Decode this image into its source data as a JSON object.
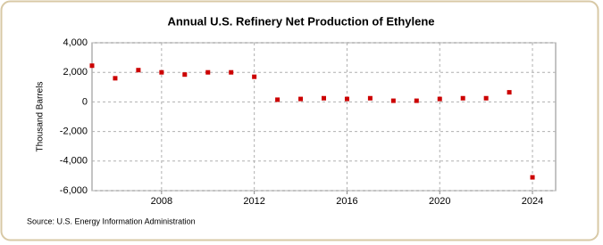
{
  "chart_data": {
    "type": "scatter",
    "title": "Annual U.S. Refinery Net Production of Ethylene",
    "y_label": "Thousand Barrels",
    "source": "Source: U.S. Energy Information Administration",
    "x": [
      2005,
      2006,
      2007,
      2008,
      2009,
      2010,
      2011,
      2012,
      2013,
      2014,
      2015,
      2016,
      2017,
      2018,
      2019,
      2020,
      2021,
      2022,
      2023,
      2024
    ],
    "series": [
      {
        "color": "#cc0000",
        "values": [
          2450,
          1600,
          2150,
          2000,
          1850,
          2000,
          2000,
          1700,
          150,
          200,
          250,
          200,
          250,
          80,
          80,
          200,
          250,
          250,
          650,
          -5100
        ]
      }
    ],
    "xlim": [
      2005,
      2025
    ],
    "xticks": [
      2008,
      2012,
      2016,
      2020,
      2024
    ],
    "ylim": [
      -6000,
      4000
    ],
    "yticks": [
      {
        "value": -6000,
        "label": "-6,000"
      },
      {
        "value": -4000,
        "label": "-4,000"
      },
      {
        "value": -2000,
        "label": "-2,000"
      },
      0,
      {
        "value": 2000,
        "label": "2,000"
      },
      {
        "value": 4000,
        "label": "4,000"
      }
    ],
    "grid": true
  }
}
